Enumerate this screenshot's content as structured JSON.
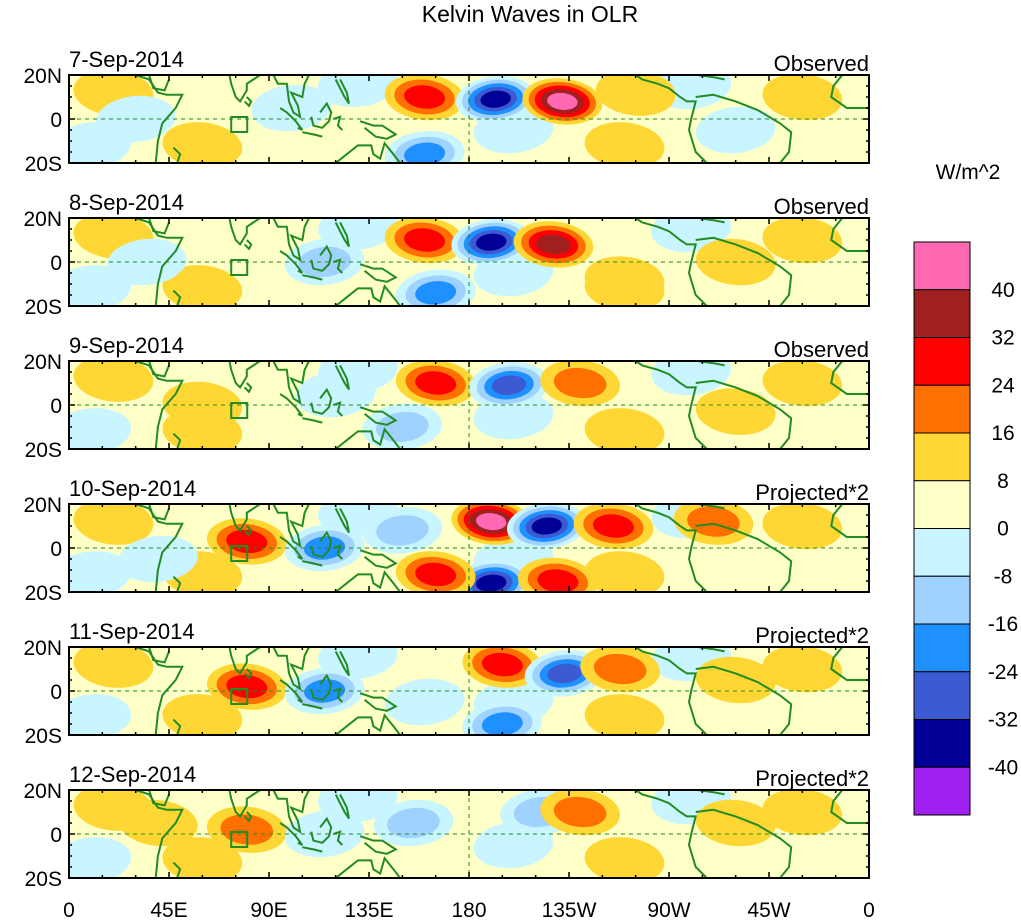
{
  "chart_data": {
    "type": "heatmap",
    "title": "Kelvin Waves in OLR",
    "colorbar": {
      "units": "W/m^2",
      "levels": [
        "40",
        "32",
        "24",
        "16",
        "8",
        "0",
        "-8",
        "-16",
        "-24",
        "-32",
        "-40"
      ],
      "colors": [
        "#ff69b4",
        "#a02020",
        "#ff0000",
        "#ff7000",
        "#ffd735",
        "#ffffc8",
        "#c8f5ff",
        "#a0d2ff",
        "#1e90ff",
        "#3c5ad2",
        "#000096",
        "#a020f0"
      ]
    },
    "lat_ticks": [
      "20N",
      "0",
      "20S"
    ],
    "lon_ticks": [
      "0",
      "45E",
      "90E",
      "135E",
      "180",
      "135W",
      "90W",
      "45W",
      "0"
    ],
    "panels": [
      {
        "date": "7-Sep-2014",
        "type": "Observed"
      },
      {
        "date": "8-Sep-2014",
        "type": "Observed"
      },
      {
        "date": "9-Sep-2014",
        "type": "Observed"
      },
      {
        "date": "10-Sep-2014",
        "type": "Projected*2"
      },
      {
        "date": "11-Sep-2014",
        "type": "Projected*2"
      },
      {
        "date": "12-Sep-2014",
        "type": "Projected*2"
      }
    ],
    "anomaly_centers": [
      [
        {
          "lon": 160,
          "lat": 10,
          "v": 20
        },
        {
          "lon": 192,
          "lat": 9,
          "v": -40
        },
        {
          "lon": 222,
          "lat": 8,
          "v": 40
        },
        {
          "lon": 160,
          "lat": -16,
          "v": -20
        },
        {
          "lon": 100,
          "lat": 5,
          "v": -10
        },
        {
          "lon": 30,
          "lat": 0,
          "v": -10
        },
        {
          "lon": 255,
          "lat": 12,
          "v": 6
        },
        {
          "lon": 300,
          "lat": -5,
          "v": -10
        }
      ],
      [
        {
          "lon": 160,
          "lat": 10,
          "v": 22
        },
        {
          "lon": 190,
          "lat": 9,
          "v": -42
        },
        {
          "lon": 218,
          "lat": 8,
          "v": 28
        },
        {
          "lon": 165,
          "lat": -14,
          "v": -20
        },
        {
          "lon": 115,
          "lat": 0,
          "v": -14
        },
        {
          "lon": 35,
          "lat": 0,
          "v": -10
        },
        {
          "lon": 300,
          "lat": 0,
          "v": 10
        },
        {
          "lon": 250,
          "lat": -8,
          "v": 8
        }
      ],
      [
        {
          "lon": 165,
          "lat": 10,
          "v": 22
        },
        {
          "lon": 198,
          "lat": 9,
          "v": -34
        },
        {
          "lon": 230,
          "lat": 10,
          "v": 14
        },
        {
          "lon": 150,
          "lat": -10,
          "v": -18
        },
        {
          "lon": 120,
          "lat": 5,
          "v": -10
        },
        {
          "lon": 60,
          "lat": 0,
          "v": 8
        },
        {
          "lon": 300,
          "lat": -3,
          "v": 10
        }
      ],
      [
        {
          "lon": 190,
          "lat": 12,
          "v": 42
        },
        {
          "lon": 215,
          "lat": 10,
          "v": -42
        },
        {
          "lon": 245,
          "lat": 10,
          "v": 22
        },
        {
          "lon": 290,
          "lat": 12,
          "v": 14
        },
        {
          "lon": 80,
          "lat": 3,
          "v": 24
        },
        {
          "lon": 115,
          "lat": 0,
          "v": -20
        },
        {
          "lon": 150,
          "lat": 8,
          "v": -18
        },
        {
          "lon": 190,
          "lat": -16,
          "v": -40
        },
        {
          "lon": 220,
          "lat": -15,
          "v": 20
        },
        {
          "lon": 165,
          "lat": -12,
          "v": 20
        },
        {
          "lon": 40,
          "lat": -5,
          "v": -10
        }
      ],
      [
        {
          "lon": 195,
          "lat": 12,
          "v": 26
        },
        {
          "lon": 223,
          "lat": 8,
          "v": -34
        },
        {
          "lon": 248,
          "lat": 10,
          "v": 12
        },
        {
          "lon": 80,
          "lat": 2,
          "v": 26
        },
        {
          "lon": 115,
          "lat": 0,
          "v": -20
        },
        {
          "lon": 160,
          "lat": -5,
          "v": -10
        },
        {
          "lon": 195,
          "lat": -15,
          "v": -20
        },
        {
          "lon": 300,
          "lat": 5,
          "v": 10
        }
      ],
      [
        {
          "lon": 155,
          "lat": 5,
          "v": -14
        },
        {
          "lon": 212,
          "lat": 10,
          "v": -12
        },
        {
          "lon": 230,
          "lat": 10,
          "v": 14
        },
        {
          "lon": 80,
          "lat": 2,
          "v": 16
        },
        {
          "lon": 115,
          "lat": 0,
          "v": -10
        },
        {
          "lon": 300,
          "lat": 5,
          "v": 8
        },
        {
          "lon": 40,
          "lat": 5,
          "v": 8
        }
      ]
    ]
  }
}
